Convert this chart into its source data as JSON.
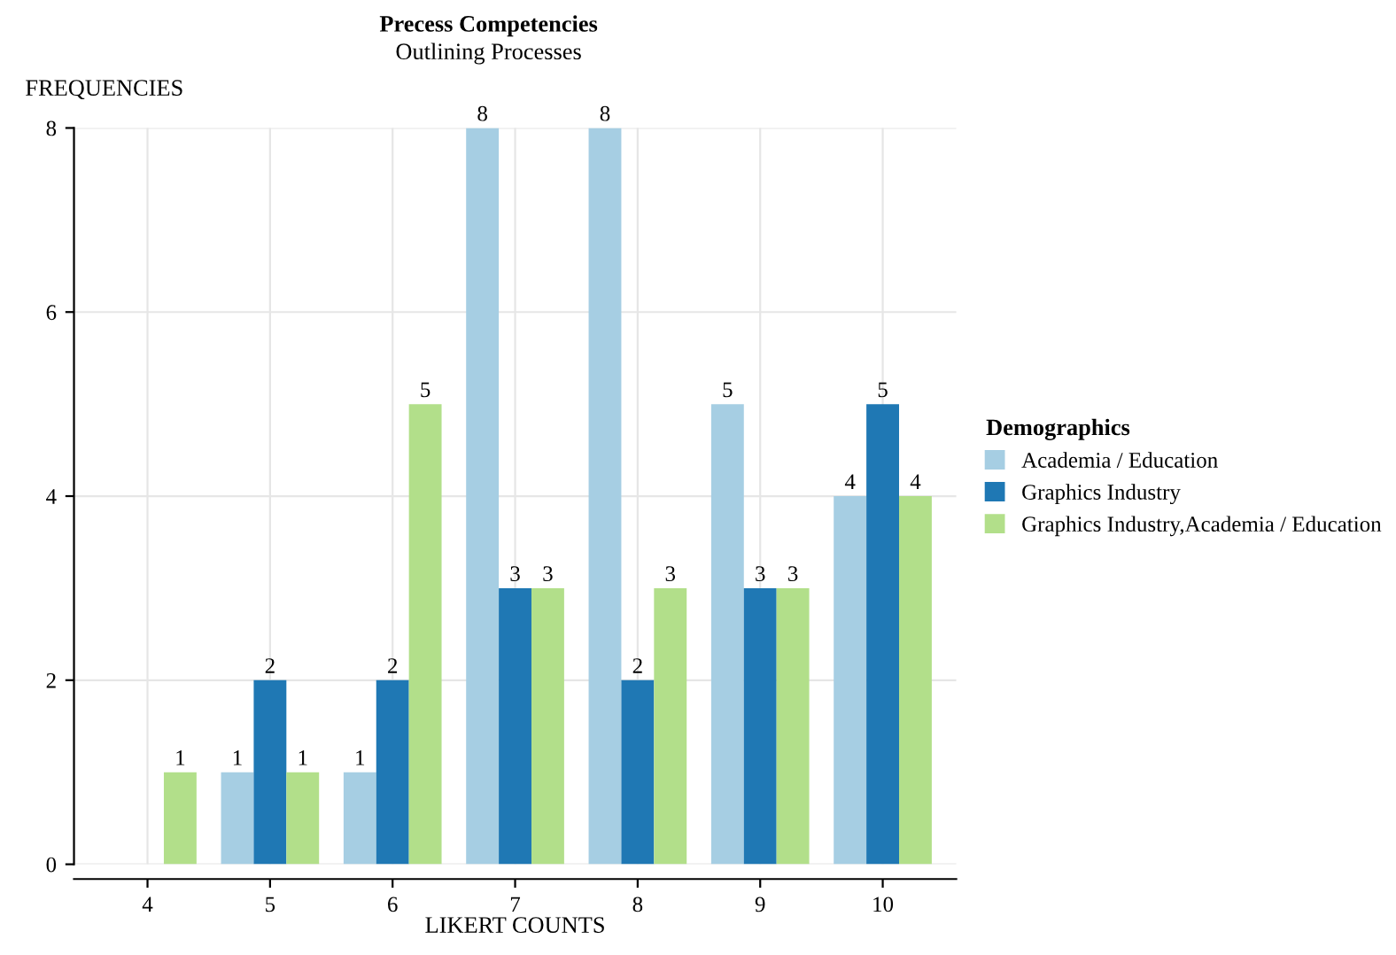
{
  "chart_data": {
    "type": "bar",
    "title": "Precess Competencies",
    "subtitle": "Outlining Processes",
    "xlabel": "LIKERT COUNTS",
    "ylabel": "FREQUENCIES",
    "legend_title": "Demographics",
    "categories": [
      "4",
      "5",
      "6",
      "7",
      "8",
      "9",
      "10"
    ],
    "series": [
      {
        "name": "Academia / Education",
        "color": "#a6cee3",
        "values": [
          null,
          1,
          1,
          8,
          8,
          5,
          4
        ]
      },
      {
        "name": "Graphics Industry",
        "color": "#1f78b4",
        "values": [
          null,
          2,
          2,
          3,
          2,
          3,
          5
        ]
      },
      {
        "name": "Graphics Industry,Academia / Education",
        "color": "#b2df8a",
        "values": [
          1,
          1,
          5,
          3,
          3,
          3,
          4
        ]
      }
    ],
    "ylim": [
      0,
      8
    ],
    "yticks": [
      0,
      2,
      4,
      6,
      8
    ],
    "grid": true,
    "legend": "right",
    "data_labels": true
  }
}
